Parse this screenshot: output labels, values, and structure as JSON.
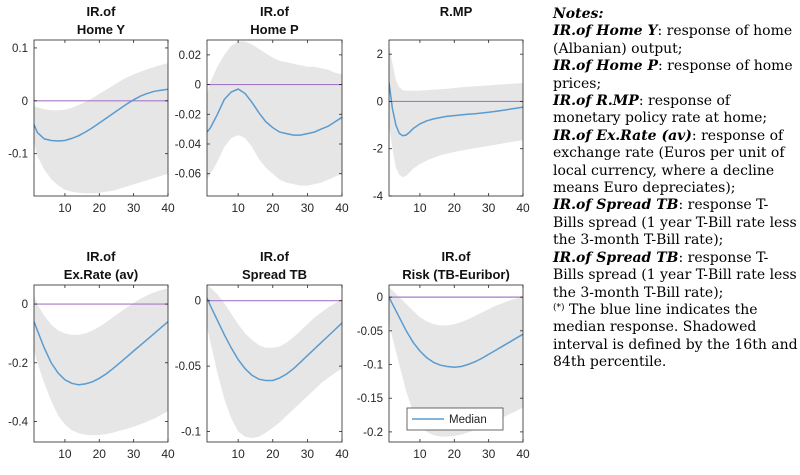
{
  "colors": {
    "band": "#e6e6e6",
    "median_line": "#5a9bd0",
    "zero_line": "#a878c8",
    "axis": "#262626"
  },
  "legend": {
    "label": "Median"
  },
  "notes": {
    "title": "Notes:",
    "items": [
      {
        "key": "IR.of Home Y",
        "text": ": response of home (Albanian) output;"
      },
      {
        "key": "IR.of Home P",
        "text": ": response of home prices;"
      },
      {
        "key": "IR.of R.MP",
        "text": ": response of monetary policy rate at home;"
      },
      {
        "key": "IR.of Ex.Rate (av)",
        "text": ": response of exchange rate (Euros per unit of local currency, where a decline means Euro depreciates);"
      },
      {
        "key": "IR.of Spread TB",
        "text": ": response T-Bills spread (1 year T-Bill rate less the 3-month T-Bill rate);"
      },
      {
        "key": "IR.of Spread TB",
        "text": ": response T-Bills spread (1 year T-Bill rate less the 3-month T-Bill rate);"
      }
    ],
    "footnote_mark": "(*)",
    "footnote": "The blue line indicates the median response. Shadowed interval is defined by the 16th and 84th percentile."
  },
  "chart_data": [
    {
      "type": "area",
      "title_line1": "IR.of",
      "title_line2": "Home Y",
      "xlim": [
        1,
        40
      ],
      "ylim": [
        -0.18,
        0.115
      ],
      "xticks": [
        10,
        20,
        30,
        40
      ],
      "yticks": [
        -0.1,
        0,
        0.1
      ],
      "ytick_labels": [
        "-0.1",
        "0",
        "0.1"
      ],
      "zero_line": 0,
      "x": [
        1,
        2,
        4,
        6,
        8,
        10,
        12,
        14,
        16,
        18,
        20,
        22,
        24,
        26,
        28,
        30,
        32,
        34,
        36,
        38,
        40
      ],
      "median": [
        -0.045,
        -0.06,
        -0.072,
        -0.075,
        -0.076,
        -0.075,
        -0.071,
        -0.066,
        -0.059,
        -0.051,
        -0.042,
        -0.033,
        -0.024,
        -0.015,
        -0.006,
        0.002,
        0.009,
        0.014,
        0.018,
        0.02,
        0.022
      ],
      "upper": [
        -0.01,
        -0.012,
        -0.016,
        -0.018,
        -0.018,
        -0.017,
        -0.013,
        -0.008,
        -0.002,
        0.005,
        0.013,
        0.021,
        0.029,
        0.037,
        0.044,
        0.05,
        0.055,
        0.06,
        0.064,
        0.068,
        0.071
      ],
      "lower": [
        -0.078,
        -0.105,
        -0.13,
        -0.148,
        -0.16,
        -0.168,
        -0.172,
        -0.174,
        -0.175,
        -0.175,
        -0.174,
        -0.172,
        -0.17,
        -0.166,
        -0.162,
        -0.158,
        -0.154,
        -0.15,
        -0.146,
        -0.142,
        -0.138
      ]
    },
    {
      "type": "area",
      "title_line1": "IR.of",
      "title_line2": "Home P",
      "xlim": [
        1,
        40
      ],
      "ylim": [
        -0.075,
        0.03
      ],
      "xticks": [
        10,
        20,
        30,
        40
      ],
      "yticks": [
        -0.06,
        -0.04,
        -0.02,
        0,
        0.02
      ],
      "ytick_labels": [
        "-0.06",
        "-0.04",
        "-0.02",
        "0",
        "0.02"
      ],
      "zero_line": 0,
      "x": [
        1,
        2,
        4,
        6,
        8,
        10,
        12,
        14,
        16,
        18,
        20,
        22,
        24,
        26,
        28,
        30,
        32,
        34,
        36,
        38,
        40
      ],
      "median": [
        -0.032,
        -0.029,
        -0.02,
        -0.01,
        -0.005,
        -0.003,
        -0.006,
        -0.012,
        -0.019,
        -0.025,
        -0.029,
        -0.032,
        -0.033,
        -0.034,
        -0.034,
        -0.033,
        -0.032,
        -0.03,
        -0.028,
        -0.025,
        -0.022
      ],
      "upper": [
        -0.006,
        0.002,
        0.012,
        0.02,
        0.026,
        0.029,
        0.029,
        0.027,
        0.024,
        0.021,
        0.018,
        0.016,
        0.015,
        0.014,
        0.013,
        0.012,
        0.012,
        0.011,
        0.01,
        0.008,
        0.007
      ],
      "lower": [
        -0.064,
        -0.06,
        -0.052,
        -0.042,
        -0.036,
        -0.034,
        -0.036,
        -0.042,
        -0.05,
        -0.056,
        -0.06,
        -0.064,
        -0.066,
        -0.067,
        -0.068,
        -0.068,
        -0.067,
        -0.066,
        -0.064,
        -0.062,
        -0.06
      ]
    },
    {
      "type": "area",
      "title_line1": "R.MP",
      "title_line2": "",
      "xlim": [
        1,
        40
      ],
      "ylim": [
        -4.0,
        2.6
      ],
      "xticks": [
        10,
        20,
        30,
        40
      ],
      "yticks": [
        -4,
        -2,
        0,
        2
      ],
      "ytick_labels": [
        "-4",
        "-2",
        "0",
        "2"
      ],
      "zero_line": 0,
      "x": [
        1,
        2,
        3,
        4,
        5,
        6,
        7,
        8,
        10,
        12,
        14,
        16,
        18,
        20,
        22,
        24,
        26,
        28,
        30,
        32,
        34,
        36,
        38,
        40
      ],
      "median": [
        0.8,
        -0.3,
        -1.0,
        -1.35,
        -1.45,
        -1.42,
        -1.3,
        -1.15,
        -0.95,
        -0.82,
        -0.74,
        -0.68,
        -0.63,
        -0.6,
        -0.57,
        -0.54,
        -0.52,
        -0.49,
        -0.46,
        -0.42,
        -0.38,
        -0.33,
        -0.29,
        -0.24
      ],
      "upper": [
        2.4,
        1.6,
        0.9,
        0.6,
        0.48,
        0.46,
        0.45,
        0.45,
        0.46,
        0.48,
        0.5,
        0.52,
        0.54,
        0.57,
        0.6,
        0.62,
        0.64,
        0.66,
        0.68,
        0.7,
        0.72,
        0.74,
        0.76,
        0.78
      ],
      "lower": [
        -1.0,
        -2.0,
        -2.8,
        -3.1,
        -3.2,
        -3.15,
        -3.0,
        -2.85,
        -2.65,
        -2.5,
        -2.38,
        -2.28,
        -2.2,
        -2.14,
        -2.08,
        -2.03,
        -1.98,
        -1.93,
        -1.88,
        -1.83,
        -1.78,
        -1.73,
        -1.68,
        -1.63
      ]
    },
    {
      "type": "area",
      "title_line1": "IR.of",
      "title_line2": "Ex.Rate (av)",
      "xlim": [
        1,
        40
      ],
      "ylim": [
        -0.47,
        0.065
      ],
      "xticks": [
        10,
        20,
        30,
        40
      ],
      "yticks": [
        -0.4,
        -0.2,
        0
      ],
      "ytick_labels": [
        "-0.4",
        "-0.2",
        "0"
      ],
      "zero_line": 0,
      "x": [
        1,
        2,
        4,
        6,
        8,
        10,
        12,
        14,
        16,
        18,
        20,
        22,
        24,
        26,
        28,
        30,
        32,
        34,
        36,
        38,
        40
      ],
      "median": [
        -0.06,
        -0.09,
        -0.15,
        -0.2,
        -0.235,
        -0.258,
        -0.27,
        -0.275,
        -0.272,
        -0.265,
        -0.253,
        -0.238,
        -0.22,
        -0.2,
        -0.18,
        -0.16,
        -0.14,
        -0.12,
        -0.1,
        -0.08,
        -0.06
      ],
      "upper": [
        0.03,
        0.0,
        -0.04,
        -0.07,
        -0.09,
        -0.1,
        -0.105,
        -0.105,
        -0.1,
        -0.09,
        -0.077,
        -0.062,
        -0.045,
        -0.028,
        -0.012,
        0.004,
        0.018,
        0.03,
        0.04,
        0.048,
        0.054
      ],
      "lower": [
        -0.16,
        -0.2,
        -0.27,
        -0.33,
        -0.38,
        -0.41,
        -0.43,
        -0.44,
        -0.445,
        -0.447,
        -0.446,
        -0.443,
        -0.438,
        -0.432,
        -0.425,
        -0.418,
        -0.41,
        -0.4,
        -0.39,
        -0.378,
        -0.365
      ]
    },
    {
      "type": "area",
      "title_line1": "IR.of",
      "title_line2": "Spread TB",
      "xlim": [
        1,
        40
      ],
      "ylim": [
        -0.108,
        0.012
      ],
      "xticks": [
        10,
        20,
        30,
        40
      ],
      "yticks": [
        -0.1,
        -0.05,
        0
      ],
      "ytick_labels": [
        "-0.1",
        "-0.05",
        "0"
      ],
      "zero_line": 0,
      "x": [
        1,
        2,
        4,
        6,
        8,
        10,
        12,
        14,
        16,
        18,
        20,
        22,
        24,
        26,
        28,
        30,
        32,
        34,
        36,
        38,
        40
      ],
      "median": [
        0.002,
        -0.004,
        -0.015,
        -0.026,
        -0.036,
        -0.045,
        -0.052,
        -0.057,
        -0.06,
        -0.061,
        -0.061,
        -0.059,
        -0.056,
        -0.052,
        -0.047,
        -0.042,
        -0.037,
        -0.032,
        -0.027,
        -0.022,
        -0.017
      ],
      "upper": [
        0.012,
        0.01,
        0.005,
        -0.002,
        -0.01,
        -0.018,
        -0.025,
        -0.03,
        -0.034,
        -0.036,
        -0.036,
        -0.035,
        -0.032,
        -0.028,
        -0.023,
        -0.018,
        -0.013,
        -0.009,
        -0.005,
        -0.002,
        0.001
      ],
      "lower": [
        -0.02,
        -0.032,
        -0.055,
        -0.075,
        -0.09,
        -0.1,
        -0.104,
        -0.105,
        -0.104,
        -0.101,
        -0.097,
        -0.093,
        -0.088,
        -0.083,
        -0.078,
        -0.073,
        -0.068,
        -0.063,
        -0.059,
        -0.055,
        -0.052
      ]
    },
    {
      "type": "area",
      "title_line1": "IR.of",
      "title_line2": "Risk (TB-Euribor)",
      "xlim": [
        1,
        40
      ],
      "ylim": [
        -0.215,
        0.018
      ],
      "xticks": [
        10,
        20,
        30,
        40
      ],
      "yticks": [
        -0.2,
        -0.15,
        -0.1,
        -0.05,
        0
      ],
      "ytick_labels": [
        "-0.2",
        "-0.15",
        "-0.1",
        "-0.05",
        "0"
      ],
      "zero_line": 0,
      "x": [
        1,
        2,
        4,
        6,
        8,
        10,
        12,
        14,
        16,
        18,
        20,
        22,
        24,
        26,
        28,
        30,
        32,
        34,
        36,
        38,
        40
      ],
      "median": [
        0.0,
        -0.01,
        -0.03,
        -0.05,
        -0.067,
        -0.08,
        -0.09,
        -0.097,
        -0.101,
        -0.103,
        -0.104,
        -0.103,
        -0.1,
        -0.096,
        -0.091,
        -0.085,
        -0.079,
        -0.073,
        -0.067,
        -0.061,
        -0.055
      ],
      "upper": [
        0.015,
        0.01,
        0.0,
        -0.01,
        -0.02,
        -0.03,
        -0.036,
        -0.04,
        -0.042,
        -0.042,
        -0.04,
        -0.037,
        -0.033,
        -0.028,
        -0.023,
        -0.018,
        -0.013,
        -0.009,
        -0.005,
        -0.002,
        0.0
      ],
      "lower": [
        -0.04,
        -0.06,
        -0.1,
        -0.14,
        -0.17,
        -0.19,
        -0.2,
        -0.205,
        -0.207,
        -0.207,
        -0.206,
        -0.204,
        -0.201,
        -0.197,
        -0.193,
        -0.189,
        -0.184,
        -0.179,
        -0.174,
        -0.169,
        -0.164
      ]
    }
  ]
}
